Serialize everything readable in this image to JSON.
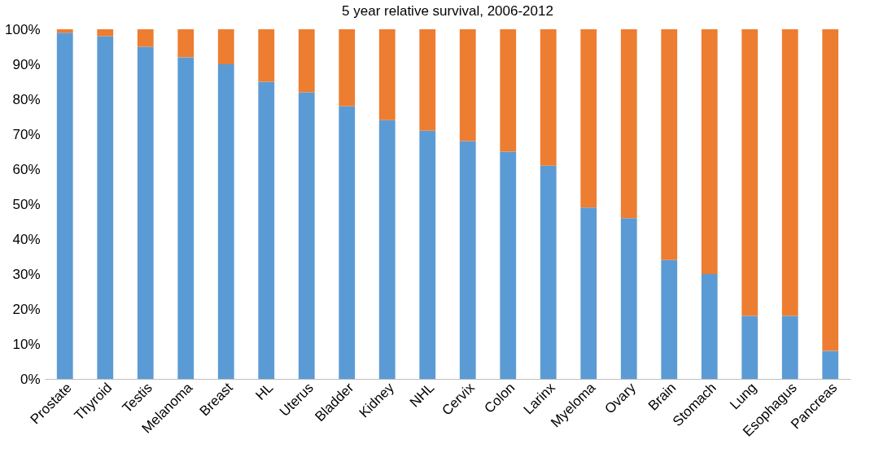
{
  "chart_data": {
    "type": "bar",
    "title": "5 year relative survival, 2006-2012",
    "stacked": true,
    "categories": [
      "Prostate",
      "Thyroid",
      "Testis",
      "Melanoma",
      "Breast",
      "HL",
      "Uterus",
      "Bladder",
      "Kidney",
      "NHL",
      "Cervix",
      "Colon",
      "Larinx",
      "Myeloma",
      "Ovary",
      "Brain",
      "Stomach",
      "Lung",
      "Esophagus",
      "Pancreas"
    ],
    "series": [
      {
        "color": "#5b9bd5",
        "values": [
          99,
          98,
          95,
          92,
          90,
          85,
          82,
          78,
          74,
          71,
          68,
          65,
          61,
          49,
          46,
          34,
          30,
          18,
          18,
          8
        ]
      },
      {
        "color": "#ed7d31",
        "values": [
          1,
          2,
          5,
          8,
          10,
          15,
          18,
          22,
          26,
          29,
          32,
          35,
          39,
          51,
          54,
          66,
          70,
          82,
          82,
          92
        ]
      }
    ],
    "ylim": [
      0,
      100
    ],
    "yticks": [
      {
        "value": 0,
        "label": "0%"
      },
      {
        "value": 10,
        "label": "10%"
      },
      {
        "value": 20,
        "label": "20%"
      },
      {
        "value": 30,
        "label": "30%"
      },
      {
        "value": 40,
        "label": "40%"
      },
      {
        "value": 50,
        "label": "50%"
      },
      {
        "value": 60,
        "label": "60%"
      },
      {
        "value": 70,
        "label": "70%"
      },
      {
        "value": 80,
        "label": "80%"
      },
      {
        "value": 90,
        "label": "90%"
      },
      {
        "value": 100,
        "label": "100%"
      }
    ],
    "grid": false,
    "legend": false
  }
}
